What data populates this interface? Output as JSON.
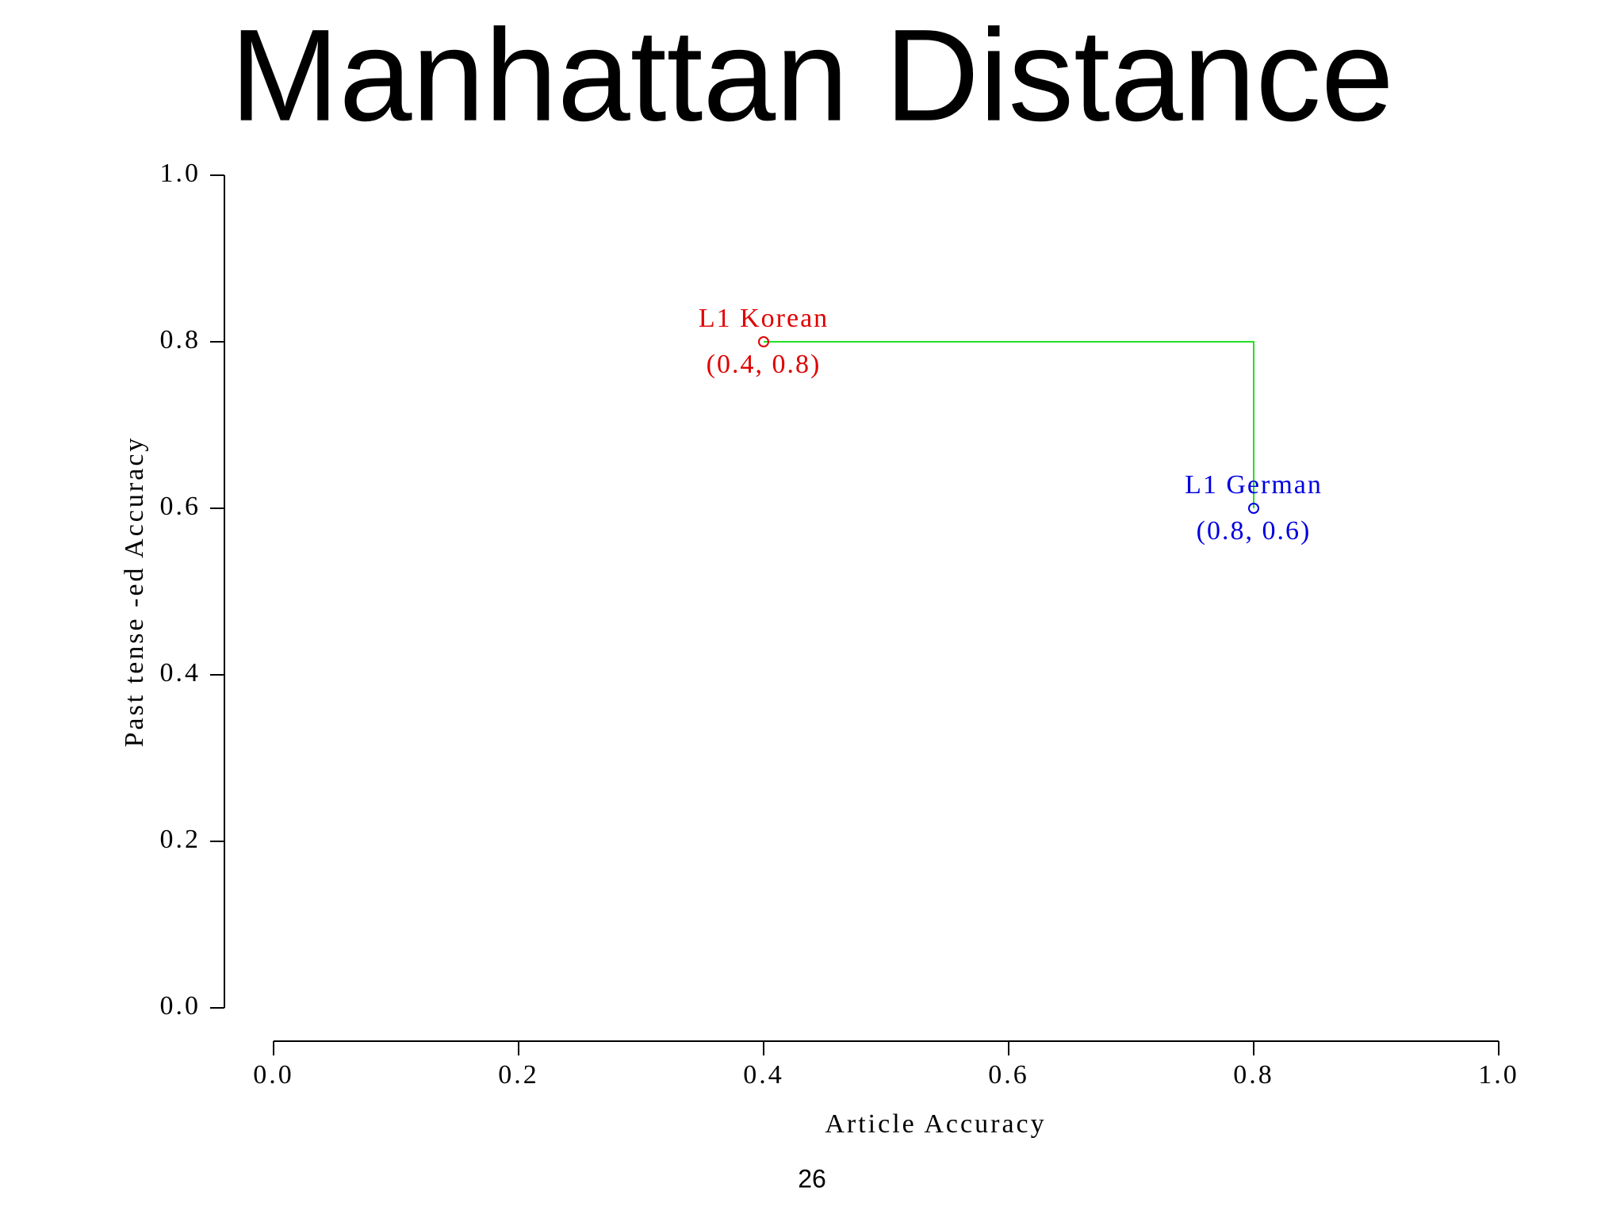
{
  "chart_data": {
    "type": "scatter",
    "title": "Manhattan Distance",
    "x_label": "Article Accuracy",
    "y_label": "Past tense -ed Accuracy",
    "xlim": [
      0,
      1
    ],
    "ylim": [
      0,
      1
    ],
    "xticks": [
      {
        "value": 0,
        "label": "0.0"
      },
      0.2,
      0.4,
      0.6,
      0.8,
      {
        "value": 1,
        "label": "1.0"
      }
    ],
    "yticks": [
      {
        "value": 0,
        "label": "0.0"
      },
      0.2,
      0.4,
      0.6,
      0.8,
      {
        "value": 1,
        "label": "1.0"
      }
    ],
    "series": [
      {
        "name": "L1 Korean",
        "color": "#e00000",
        "x": [
          0.4
        ],
        "values": [
          0.8
        ],
        "value_labels": [
          "(0.4, 0.8)"
        ]
      },
      {
        "name": "L1 German",
        "color": "#0000e0",
        "x": [
          0.8
        ],
        "values": [
          0.6
        ],
        "value_labels": [
          "(0.8, 0.6)"
        ]
      }
    ],
    "path": {
      "color": "#22e022",
      "x": [
        0.4,
        0.8,
        0.8
      ],
      "values": [
        0.8,
        0.8,
        0.6
      ]
    }
  },
  "page_number": "26"
}
